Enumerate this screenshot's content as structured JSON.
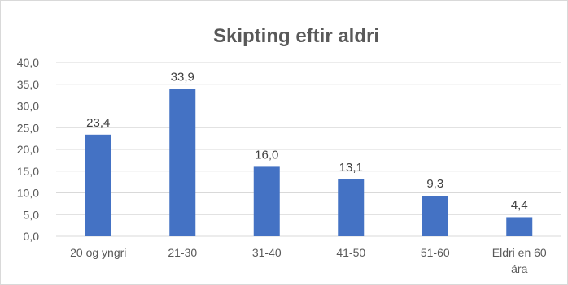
{
  "chart_data": {
    "type": "bar",
    "title": "Skipting eftir aldri",
    "categories": [
      [
        "20 og yngri"
      ],
      [
        "21-30"
      ],
      [
        "31-40"
      ],
      [
        "41-50"
      ],
      [
        "51-60"
      ],
      [
        "Eldri en 60",
        "ára"
      ]
    ],
    "values": [
      23.4,
      33.9,
      16.0,
      13.1,
      9.3,
      4.4
    ],
    "data_labels": [
      "23,4",
      "33,9",
      "16,0",
      "13,1",
      "9,3",
      "4,4"
    ],
    "y_ticks": [
      "0,0",
      "5,0",
      "10,0",
      "15,0",
      "20,0",
      "25,0",
      "30,0",
      "35,0",
      "40,0"
    ],
    "ylim": [
      0,
      40
    ],
    "grid": true,
    "legend": false,
    "bar_color": "#4472c4"
  }
}
